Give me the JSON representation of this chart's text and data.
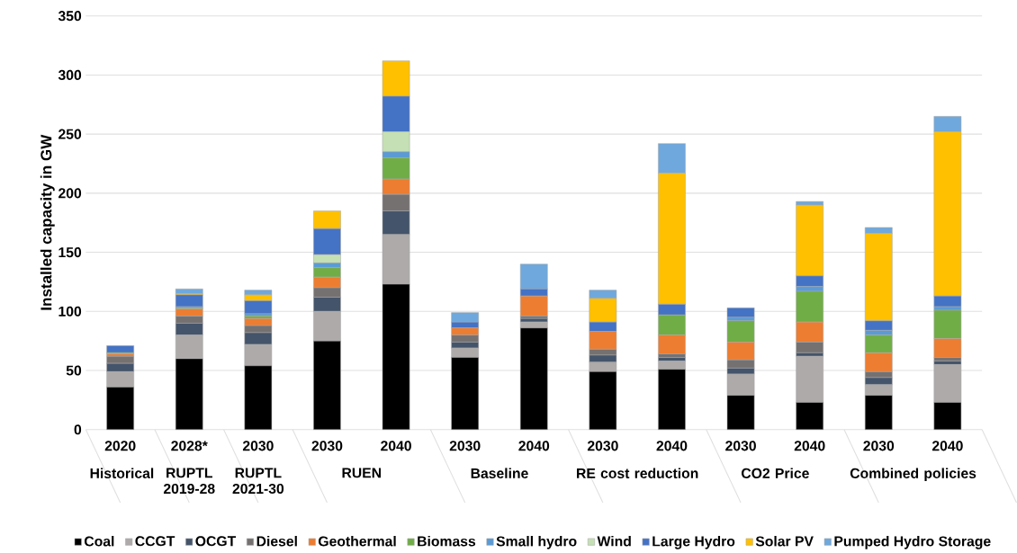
{
  "chart_data": {
    "type": "bar",
    "stacked": true,
    "ylabel": "Installed capacity in GW",
    "categories": [
      "2020",
      "2028*",
      "2030",
      "2030",
      "2040",
      "2030",
      "2040",
      "2030",
      "2040",
      "2030",
      "2040",
      "2030",
      "2040"
    ],
    "annotations": [
      "Historical",
      "RUPTL 2019-28",
      "RUPTL 2021-30",
      "RUEN",
      "Baseline",
      "RE cost reduction",
      "CO2 Price",
      "Combined policies"
    ],
    "ylim": [
      0,
      350
    ],
    "yticks": [
      0,
      50,
      100,
      150,
      200,
      250,
      300,
      350
    ],
    "grid": "y",
    "legend": "bottom",
    "series": [
      {
        "name": "Coal",
        "color": "#000000",
        "values": [
          36,
          60,
          54,
          75,
          123,
          61,
          86,
          49,
          51,
          29,
          23,
          29,
          23
        ]
      },
      {
        "name": "CCGT",
        "color": "#aeaaaa",
        "values": [
          13,
          20,
          18,
          25,
          42,
          8,
          5,
          8,
          7,
          18,
          39,
          9,
          32
        ]
      },
      {
        "name": "OCGT",
        "color": "#44546a",
        "values": [
          7,
          10,
          10,
          12,
          20,
          5,
          3,
          6,
          3,
          5,
          3,
          6,
          3
        ]
      },
      {
        "name": "Diesel",
        "color": "#767171",
        "values": [
          6,
          6,
          6,
          8,
          14,
          6,
          2,
          5,
          3,
          7,
          9,
          5,
          3
        ]
      },
      {
        "name": "Geothermal",
        "color": "#ed7d31",
        "values": [
          2,
          6,
          6,
          9,
          13,
          6,
          17,
          15,
          16,
          15,
          17,
          16,
          16
        ]
      },
      {
        "name": "Biomass",
        "color": "#70ad47",
        "values": [
          1,
          1,
          2,
          8,
          18,
          0,
          0,
          0,
          17,
          18,
          26,
          15,
          24
        ]
      },
      {
        "name": "Small hydro",
        "color": "#5b9bd5",
        "values": [
          0,
          1,
          2,
          4,
          5,
          0,
          0,
          0,
          0,
          3,
          4,
          4,
          3
        ]
      },
      {
        "name": "Wind",
        "color": "#c5e0b4",
        "values": [
          0,
          0,
          0,
          7,
          17,
          0,
          0,
          0,
          0,
          0,
          0,
          0,
          0
        ]
      },
      {
        "name": "Large Hydro",
        "color": "#4472c4",
        "values": [
          6,
          10,
          11,
          22,
          30,
          5,
          6,
          8,
          9,
          8,
          9,
          8,
          9
        ]
      },
      {
        "name": "Solar PV",
        "color": "#ffc000",
        "values": [
          0,
          1,
          5,
          15,
          30,
          0,
          0,
          20,
          111,
          0,
          60,
          74,
          139
        ]
      },
      {
        "name": "Pumped Hydro Storage",
        "color": "#6fa8dc",
        "values": [
          0,
          4,
          4,
          0,
          0,
          8,
          21,
          7,
          25,
          0,
          3,
          5,
          13
        ]
      }
    ]
  }
}
